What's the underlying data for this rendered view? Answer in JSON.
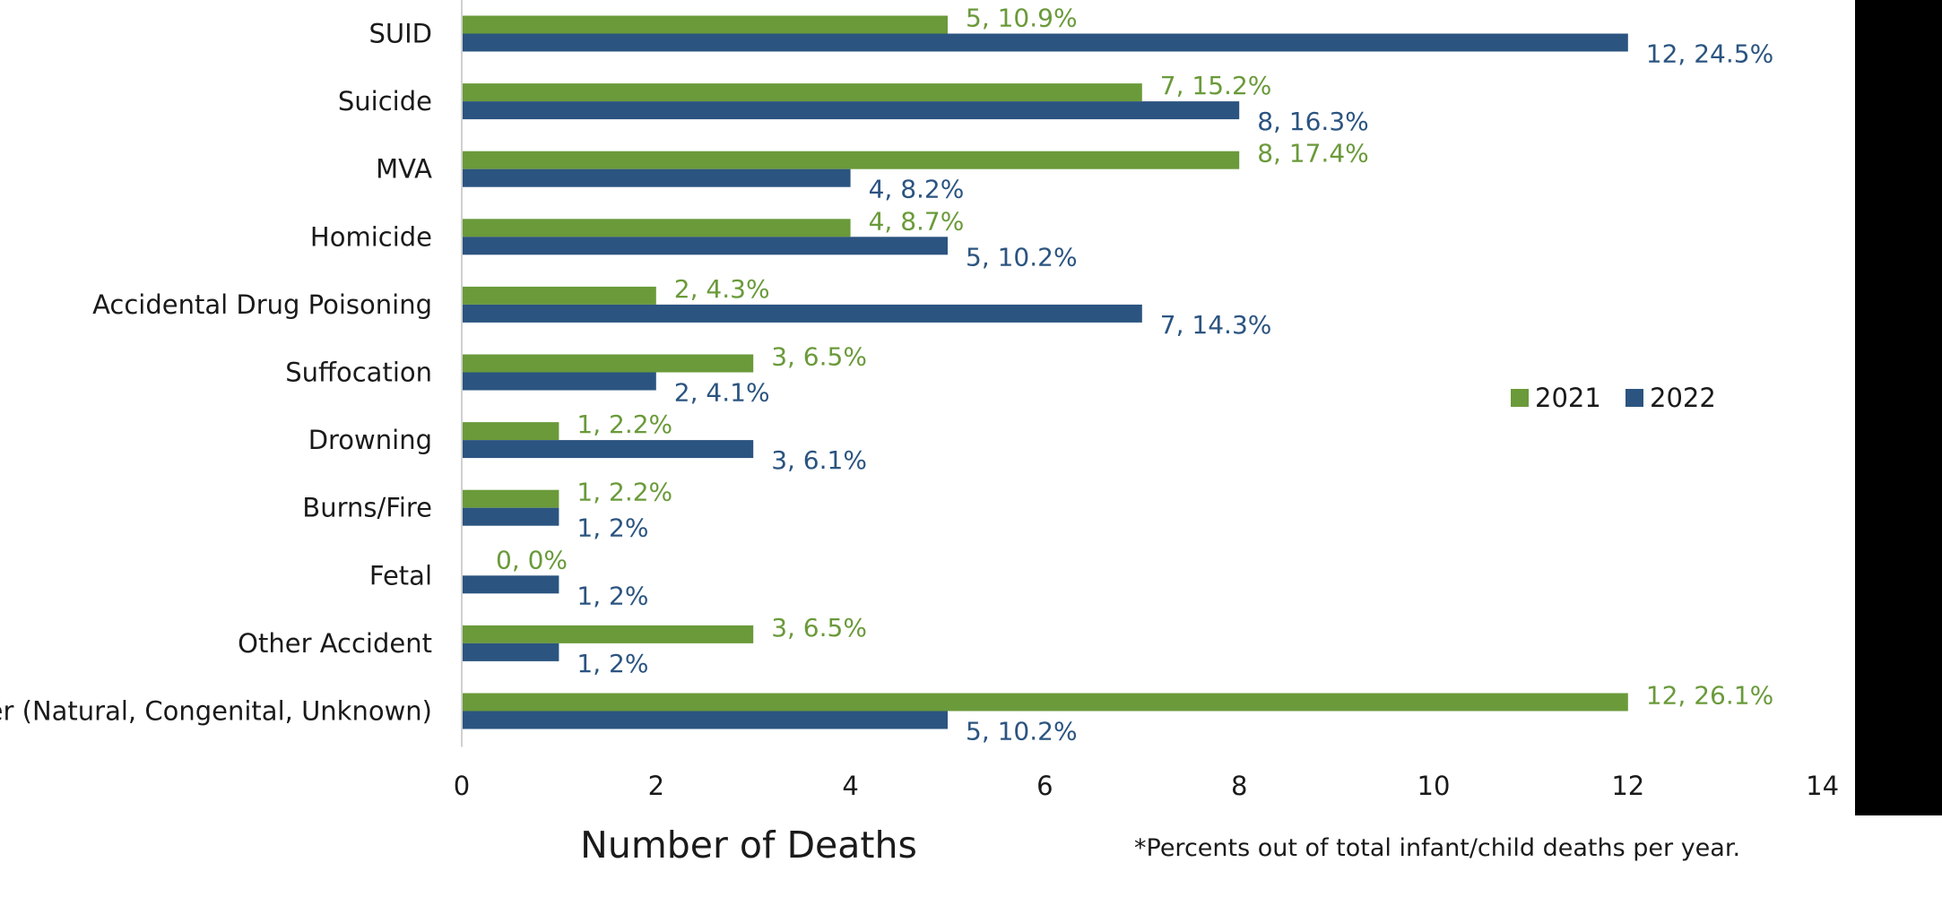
{
  "chart_data": {
    "type": "bar",
    "orientation": "horizontal",
    "categories": [
      "SUID",
      "Suicide",
      "MVA",
      "Homicide",
      "Accidental Drug Poisoning",
      "Suffocation",
      "Drowning",
      "Burns/Fire",
      "Fetal",
      "Other Accident",
      "Other (Natural, Congenital, Unknown)"
    ],
    "series": [
      {
        "name": "2021",
        "color": "#6a9a3a",
        "values": [
          5,
          7,
          8,
          4,
          2,
          3,
          1,
          1,
          0,
          3,
          12
        ],
        "labels": [
          "5, 10.9%",
          "7, 15.2%",
          "8, 17.4%",
          "4, 8.7%",
          "2, 4.3%",
          "3, 6.5%",
          "1, 2.2%",
          "1, 2.2%",
          "0, 0%",
          "3, 6.5%",
          "12, 26.1%"
        ]
      },
      {
        "name": "2022",
        "color": "#2b5480",
        "values": [
          12,
          8,
          4,
          5,
          7,
          2,
          3,
          1,
          1,
          1,
          5
        ],
        "labels": [
          "12, 24.5%",
          "8, 16.3%",
          "4, 8.2%",
          "5, 10.2%",
          "7, 14.3%",
          "2, 4.1%",
          "3, 6.1%",
          "1, 2%",
          "1, 2%",
          "1, 2%",
          "5, 10.2%"
        ]
      }
    ],
    "xlabel": "Number of Deaths",
    "xlim": [
      0,
      14
    ],
    "xticks": [
      0,
      2,
      4,
      6,
      8,
      10,
      12,
      14
    ],
    "legend_position": "right",
    "grid": false,
    "footnote": "*Percents out of total infant/child deaths per year."
  }
}
